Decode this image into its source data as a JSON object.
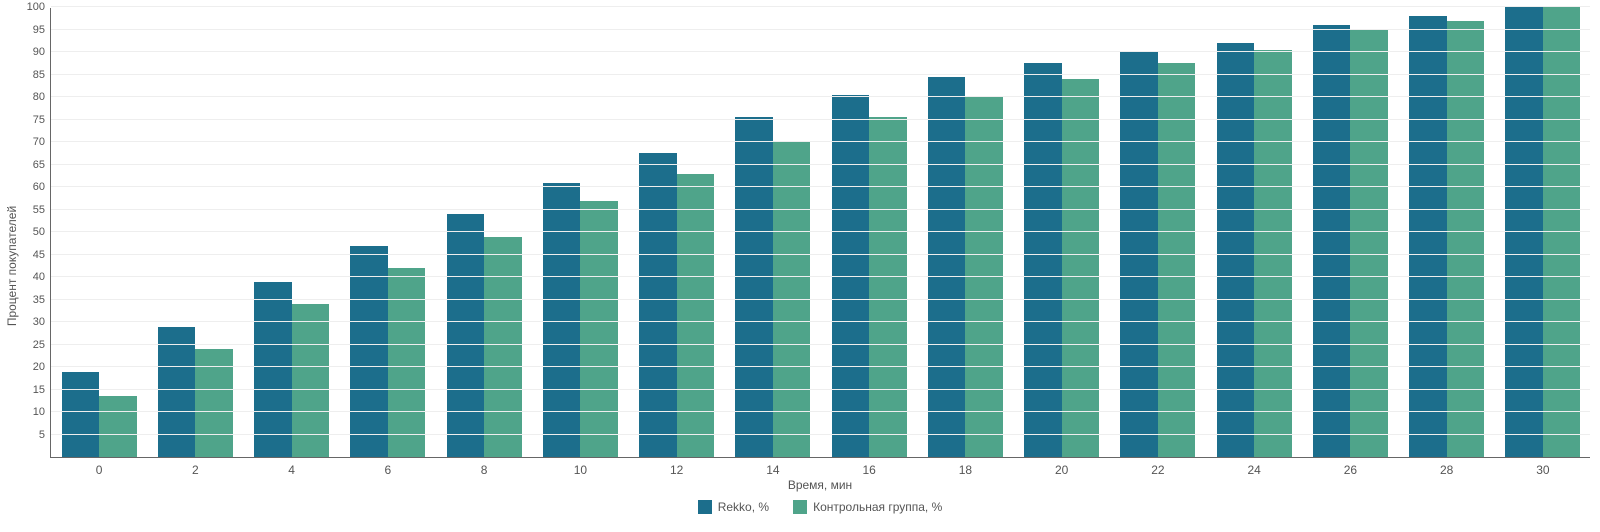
{
  "chart": {
    "type": "bar",
    "background_color": "#ffffff",
    "axis_color": "#666666",
    "grid_color": "#eeeeee",
    "text_color": "#555555",
    "xlabel": "Время, мин",
    "ylabel": "Процент покупателей",
    "label_fontsize": 12,
    "tick_fontsize": 11,
    "ylim": [
      0,
      100
    ],
    "ytick_step": 5,
    "categories": [
      "0",
      "2",
      "4",
      "6",
      "8",
      "10",
      "12",
      "14",
      "16",
      "18",
      "20",
      "22",
      "24",
      "26",
      "28",
      "30"
    ],
    "group_width_ratio": 0.78,
    "bar_gap_ratio": 0.0,
    "series": [
      {
        "name": "Rekko, %",
        "color": "#1c6e8c",
        "values": [
          19,
          29,
          39,
          47,
          54,
          61,
          67.5,
          75.5,
          80.5,
          84.5,
          87.5,
          90,
          92,
          96,
          98,
          100
        ]
      },
      {
        "name": "Контрольная группа, %",
        "color": "#4fa48a",
        "values": [
          13.5,
          24,
          34,
          42,
          49,
          57,
          63,
          70,
          75.5,
          80,
          84,
          87.5,
          90.5,
          95,
          97,
          100
        ]
      }
    ],
    "legend_position": "bottom"
  }
}
